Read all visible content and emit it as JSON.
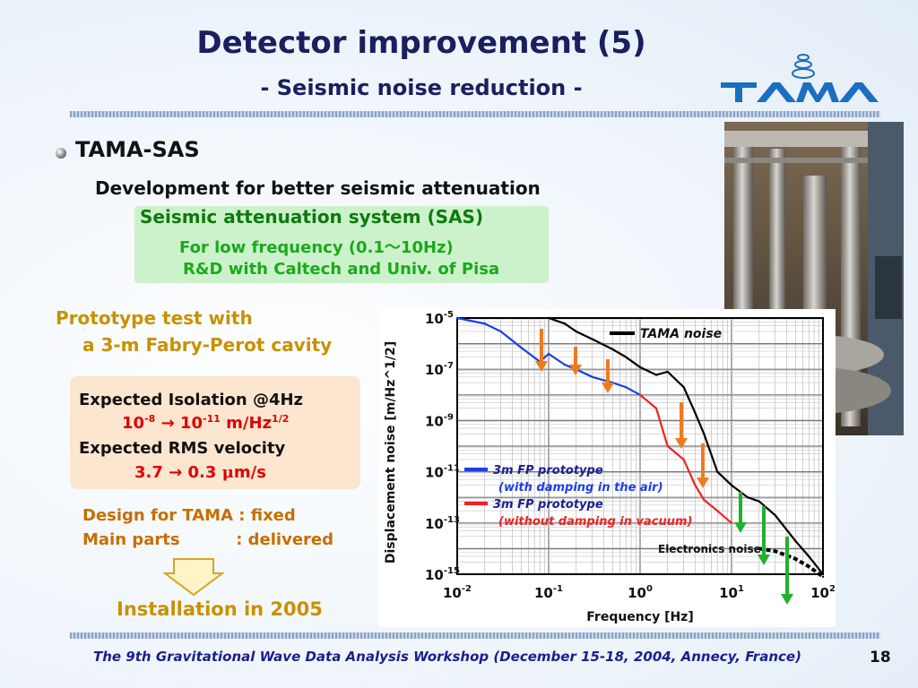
{
  "slide": {
    "title": "Detector improvement (5)",
    "subtitle": "- Seismic noise reduction -",
    "logo_text": "TAMA",
    "page_number": "18",
    "footer": "The 9th Gravitational Wave Data Analysis Workshop  (December 15-18, 2004, Annecy, France)"
  },
  "content": {
    "heading": "TAMA-SAS",
    "dev_line": "Development for better seismic attenuation",
    "sas_line": "Seismic attenuation system (SAS)",
    "low_freq": "For low frequency (0.1～10Hz)",
    "rd": "R&D with Caltech and Univ. of Pisa",
    "proto_1": "Prototype test with",
    "proto_2": "a 3-m Fabry-Perot cavity",
    "iso_label": "Expected Isolation @4Hz",
    "iso_from_base": "10",
    "iso_from_exp": "-8",
    "iso_arrow": "→",
    "iso_to_base": "10",
    "iso_to_exp": "-11",
    "iso_unit": "m/Hz",
    "iso_unit_exp": "1/2",
    "rms_label": "Expected RMS velocity",
    "rms_value": "3.7 → 0.3",
    "rms_mu": "μ",
    "rms_unit": "m/s",
    "design_1": "Design for TAMA : fixed",
    "design_2": "Main parts          : delivered",
    "install": "Installation in 2005"
  },
  "colors": {
    "title": "#1a1f5e",
    "green_dark": "#0e7a0e",
    "green_light": "#1aaa1a",
    "gold": "#c89100",
    "orange": "#c86e00",
    "red": "#e00000"
  },
  "chart_data": {
    "type": "line",
    "xlabel": "Frequency [Hz]",
    "ylabel": "Displacement noise [m/Hz^1/2]",
    "xscale": "log",
    "yscale": "log",
    "xlim": [
      0.01,
      100
    ],
    "ylim": [
      1e-15,
      1e-05
    ],
    "xticks": [
      "10-2",
      "10-1",
      "100",
      "101",
      "102"
    ],
    "yticks": [
      "10-5",
      "10-7",
      "10-9",
      "10-11",
      "10-13",
      "10-15"
    ],
    "series": [
      {
        "name": "TAMA noise",
        "color": "#000000",
        "x": [
          0.1,
          0.15,
          0.2,
          0.3,
          0.5,
          0.7,
          1,
          1.5,
          2,
          3,
          4,
          5,
          7,
          10,
          15,
          20,
          30,
          50,
          70,
          100
        ],
        "y": [
          1e-05,
          6e-06,
          3e-06,
          1.5e-06,
          6e-07,
          3e-07,
          1.2e-07,
          6e-08,
          8e-08,
          2e-08,
          2e-09,
          3e-10,
          1e-11,
          3e-12,
          1e-12,
          7e-13,
          2e-13,
          2e-14,
          5e-15,
          1e-15
        ]
      },
      {
        "name": "3m FP prototype (with damping in the air)",
        "color": "#1a3ee6",
        "x": [
          0.01,
          0.02,
          0.03,
          0.05,
          0.08,
          0.1,
          0.15,
          0.2,
          0.3,
          0.5,
          0.7,
          1
        ],
        "y": [
          1e-05,
          6e-06,
          3e-06,
          7e-07,
          2e-07,
          4e-07,
          1.5e-07,
          1e-07,
          5e-08,
          3e-08,
          2e-08,
          1e-08
        ]
      },
      {
        "name": "3m FP prototype (without damping in vacuum)",
        "color": "#ee2222",
        "x": [
          1,
          1.5,
          2,
          3,
          4,
          5,
          7,
          10
        ],
        "y": [
          1e-08,
          3e-09,
          1e-10,
          3e-11,
          3e-12,
          8e-13,
          3e-13,
          1e-13
        ]
      },
      {
        "name": "Electronics noise",
        "color": "#000000",
        "x": [
          20,
          30,
          50,
          70,
          100
        ],
        "y": [
          1e-14,
          8e-15,
          4e-15,
          2e-15,
          8e-16
        ]
      }
    ],
    "annotations": [
      "TAMA noise",
      "3m FP prototype",
      "(with damping in the air)",
      "3m FP prototype",
      "(without damping in vacuum)",
      "Electronics noise"
    ]
  }
}
